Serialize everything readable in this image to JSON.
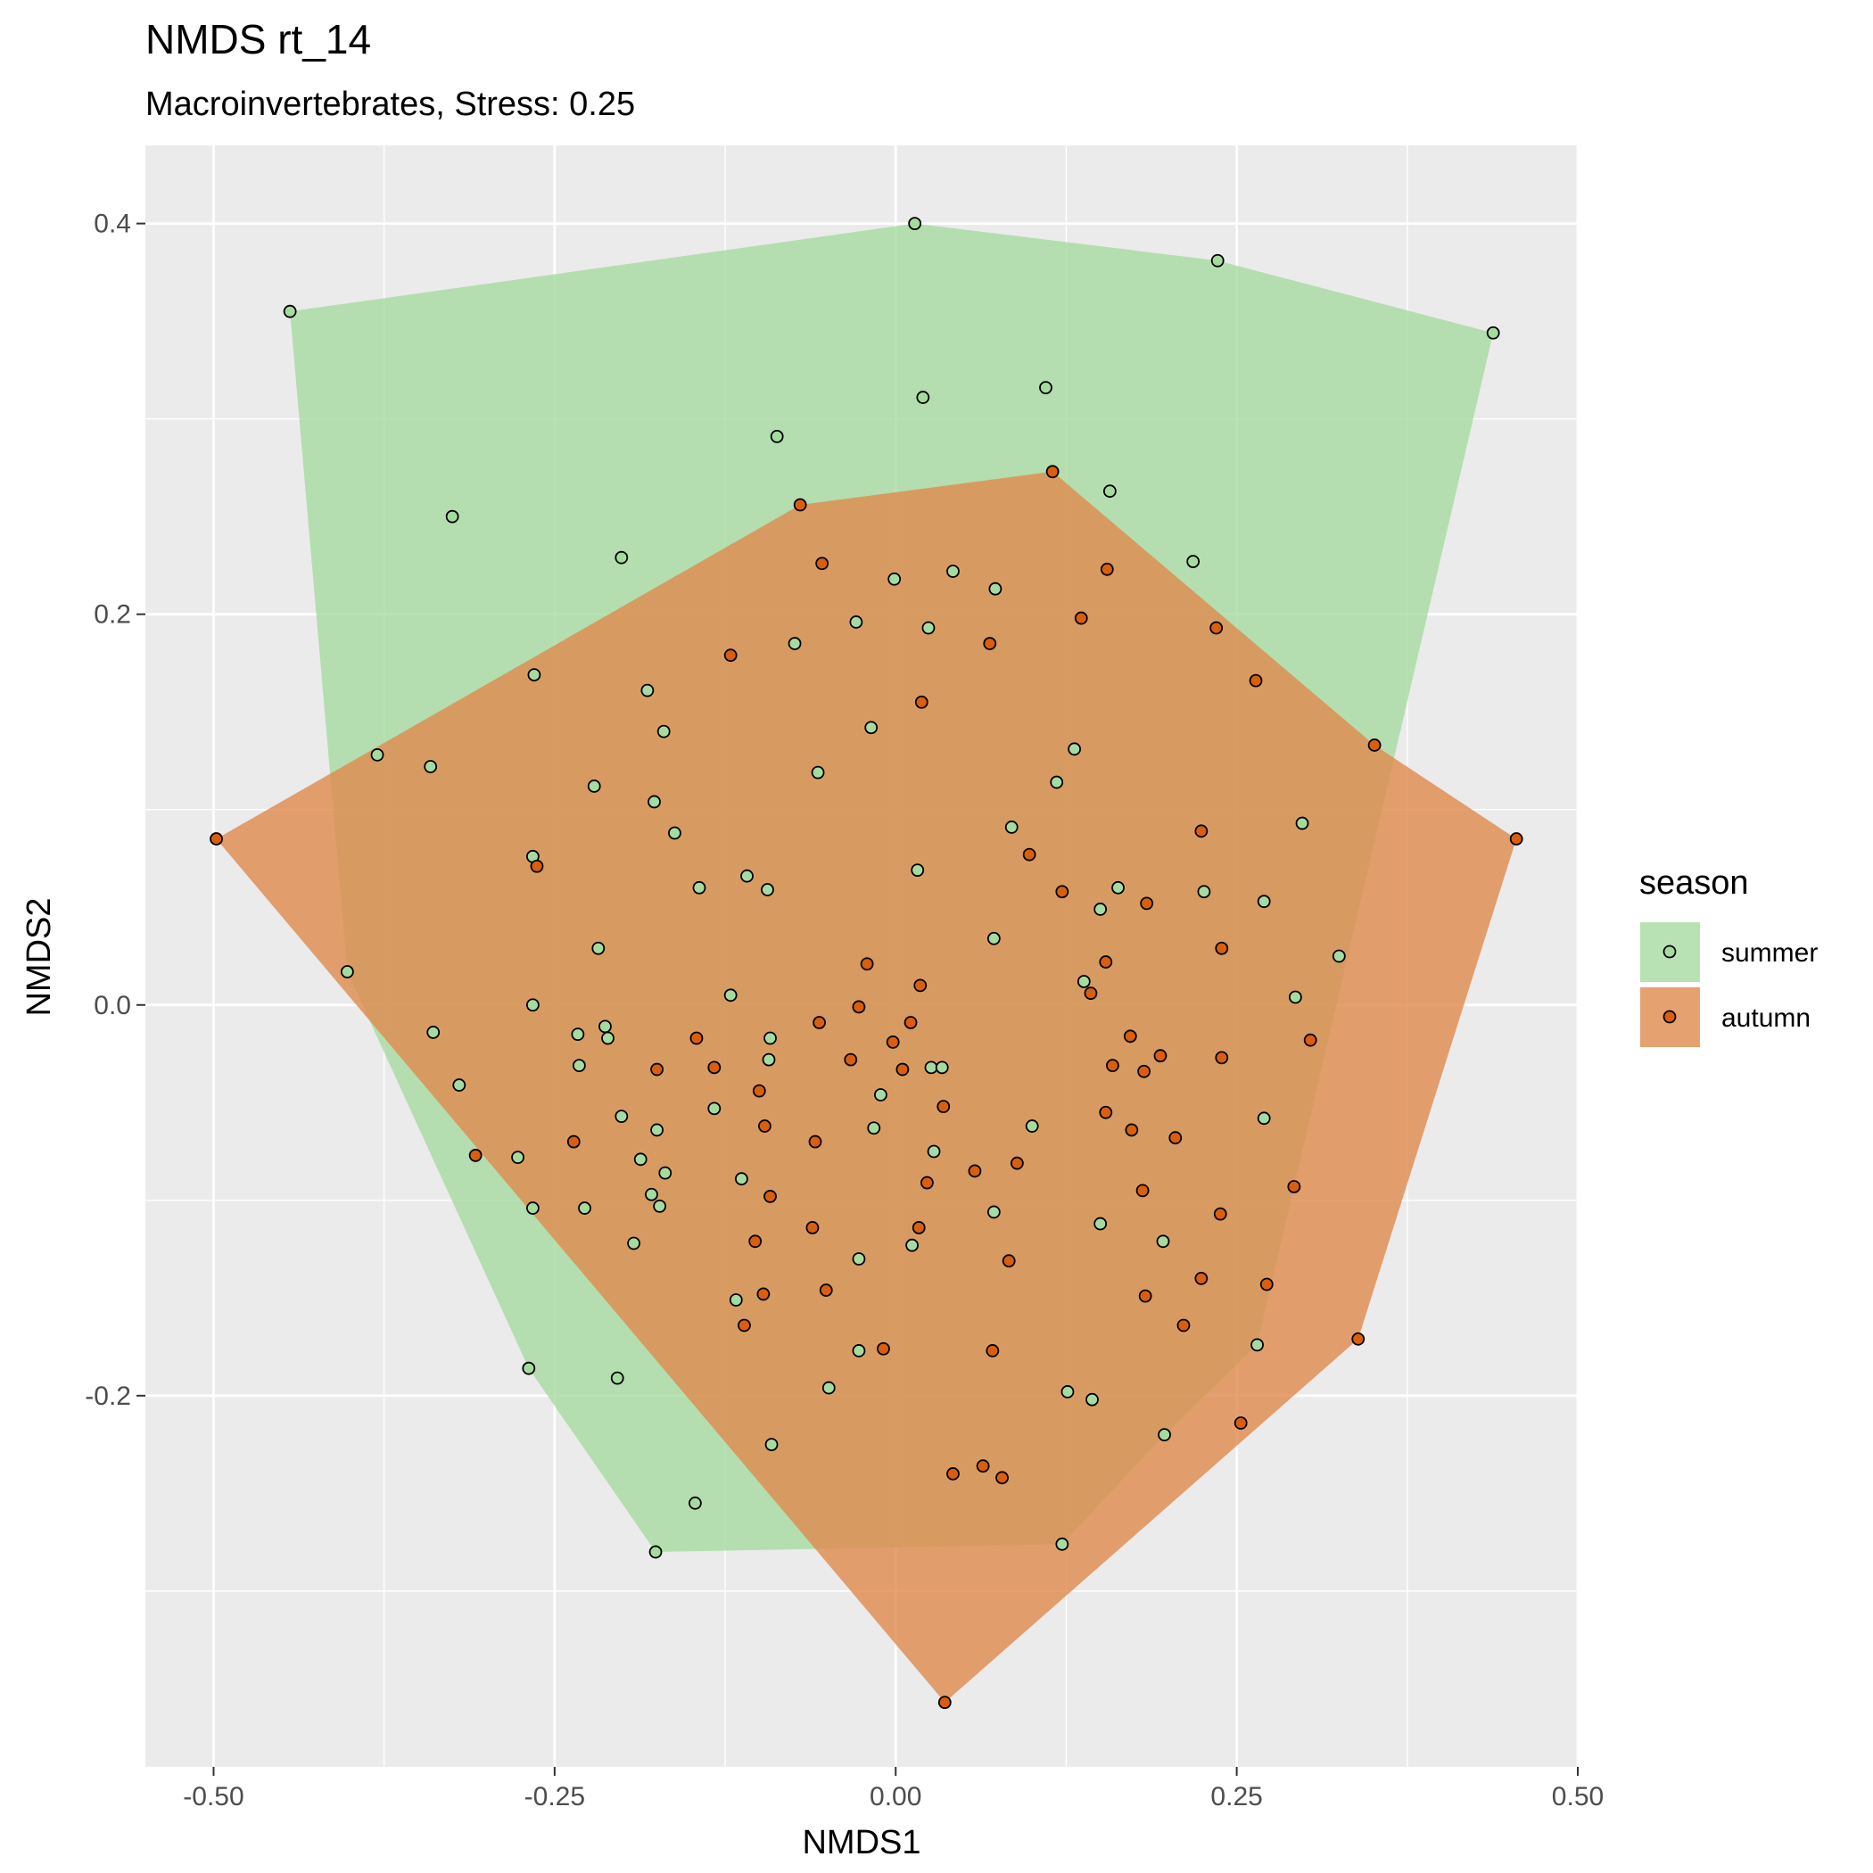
{
  "chart_data": {
    "type": "scatter",
    "title": "NMDS rt_14",
    "subtitle": "Macroinvertebrates, Stress: 0.25",
    "xlabel": "NMDS1",
    "ylabel": "NMDS2",
    "xlim": [
      -0.55,
      0.5
    ],
    "ylim": [
      -0.39,
      0.44
    ],
    "x_ticks": [
      -0.5,
      -0.25,
      0.0,
      0.25,
      0.5
    ],
    "x_tick_labels": [
      "-0.50",
      "-0.25",
      "0.00",
      "0.25",
      "0.50"
    ],
    "y_ticks": [
      -0.2,
      0.0,
      0.2,
      0.4
    ],
    "y_tick_labels": [
      "-0.2",
      "0.0",
      "0.2",
      "0.4"
    ],
    "grid": true,
    "panel_background": "#ebebeb",
    "legend": {
      "title": "season",
      "position": "right"
    },
    "hulls": true,
    "series": [
      {
        "name": "summer",
        "color": "#a6dba0",
        "hull_color": "#a6dba0",
        "points": [
          [
            0.014,
            0.4
          ],
          [
            0.236,
            0.381
          ],
          [
            -0.444,
            0.355
          ],
          [
            0.438,
            0.344
          ],
          [
            0.02,
            0.311
          ],
          [
            0.11,
            0.316
          ],
          [
            -0.087,
            0.291
          ],
          [
            -0.325,
            0.25
          ],
          [
            0.157,
            0.263
          ],
          [
            -0.201,
            0.229
          ],
          [
            0.218,
            0.227
          ],
          [
            0.042,
            0.222
          ],
          [
            -0.001,
            0.218
          ],
          [
            0.073,
            0.213
          ],
          [
            -0.029,
            0.196
          ],
          [
            0.024,
            0.193
          ],
          [
            -0.074,
            0.185
          ],
          [
            -0.265,
            0.169
          ],
          [
            -0.182,
            0.161
          ],
          [
            -0.17,
            0.14
          ],
          [
            -0.018,
            0.142
          ],
          [
            0.131,
            0.131
          ],
          [
            -0.38,
            0.128
          ],
          [
            -0.341,
            0.122
          ],
          [
            -0.057,
            0.119
          ],
          [
            0.118,
            0.114
          ],
          [
            -0.221,
            0.112
          ],
          [
            -0.177,
            0.104
          ],
          [
            0.085,
            0.091
          ],
          [
            0.298,
            0.093
          ],
          [
            -0.162,
            0.088
          ],
          [
            -0.266,
            0.076
          ],
          [
            0.016,
            0.069
          ],
          [
            -0.109,
            0.066
          ],
          [
            -0.144,
            0.06
          ],
          [
            -0.094,
            0.059
          ],
          [
            0.163,
            0.06
          ],
          [
            0.226,
            0.058
          ],
          [
            0.15,
            0.049
          ],
          [
            0.27,
            0.053
          ],
          [
            0.072,
            0.034
          ],
          [
            -0.218,
            0.029
          ],
          [
            0.325,
            0.025
          ],
          [
            -0.402,
            0.017
          ],
          [
            0.138,
            0.012
          ],
          [
            -0.121,
            0.005
          ],
          [
            0.293,
            0.004
          ],
          [
            -0.266,
            0.0
          ],
          [
            -0.213,
            -0.011
          ],
          [
            -0.233,
            -0.015
          ],
          [
            -0.211,
            -0.017
          ],
          [
            -0.339,
            -0.014
          ],
          [
            -0.092,
            -0.017
          ],
          [
            -0.093,
            -0.028
          ],
          [
            -0.232,
            -0.031
          ],
          [
            -0.32,
            -0.041
          ],
          [
            0.026,
            -0.032
          ],
          [
            0.034,
            -0.032
          ],
          [
            -0.011,
            -0.046
          ],
          [
            -0.133,
            -0.053
          ],
          [
            -0.201,
            -0.057
          ],
          [
            -0.175,
            -0.064
          ],
          [
            -0.016,
            -0.063
          ],
          [
            0.1,
            -0.062
          ],
          [
            0.27,
            -0.058
          ],
          [
            -0.277,
            -0.078
          ],
          [
            -0.187,
            -0.079
          ],
          [
            0.028,
            -0.075
          ],
          [
            -0.169,
            -0.086
          ],
          [
            -0.113,
            -0.089
          ],
          [
            -0.179,
            -0.097
          ],
          [
            -0.173,
            -0.103
          ],
          [
            -0.266,
            -0.104
          ],
          [
            -0.228,
            -0.104
          ],
          [
            0.072,
            -0.106
          ],
          [
            0.15,
            -0.112
          ],
          [
            -0.192,
            -0.122
          ],
          [
            0.012,
            -0.123
          ],
          [
            0.196,
            -0.121
          ],
          [
            -0.027,
            -0.13
          ],
          [
            -0.117,
            -0.151
          ],
          [
            -0.027,
            -0.177
          ],
          [
            0.265,
            -0.174
          ],
          [
            -0.269,
            -0.186
          ],
          [
            -0.204,
            -0.191
          ],
          [
            -0.049,
            -0.196
          ],
          [
            0.126,
            -0.198
          ],
          [
            0.144,
            -0.202
          ],
          [
            0.197,
            -0.22
          ],
          [
            -0.091,
            -0.225
          ],
          [
            -0.147,
            -0.255
          ],
          [
            -0.176,
            -0.28
          ],
          [
            0.122,
            -0.276
          ]
        ],
        "hull": [
          [
            0.014,
            0.4
          ],
          [
            0.236,
            0.381
          ],
          [
            0.438,
            0.344
          ],
          [
            0.265,
            -0.174
          ],
          [
            0.197,
            -0.22
          ],
          [
            0.122,
            -0.276
          ],
          [
            -0.176,
            -0.28
          ],
          [
            -0.269,
            -0.186
          ],
          [
            -0.402,
            0.017
          ],
          [
            -0.444,
            0.355
          ]
        ]
      },
      {
        "name": "autumn",
        "color": "#d95f0e",
        "hull_color": "#e08a4d",
        "points": [
          [
            0.115,
            0.273
          ],
          [
            -0.07,
            0.256
          ],
          [
            -0.054,
            0.226
          ],
          [
            0.155,
            0.223
          ],
          [
            0.136,
            0.198
          ],
          [
            0.235,
            0.193
          ],
          [
            0.069,
            0.185
          ],
          [
            -0.121,
            0.179
          ],
          [
            0.264,
            0.166
          ],
          [
            0.019,
            0.155
          ],
          [
            0.351,
            0.133
          ],
          [
            -0.498,
            0.085
          ],
          [
            0.455,
            0.085
          ],
          [
            0.224,
            0.089
          ],
          [
            0.098,
            0.077
          ],
          [
            -0.263,
            0.071
          ],
          [
            0.122,
            0.058
          ],
          [
            0.184,
            0.052
          ],
          [
            0.239,
            0.029
          ],
          [
            -0.021,
            0.021
          ],
          [
            0.154,
            0.022
          ],
          [
            0.018,
            0.01
          ],
          [
            0.143,
            0.006
          ],
          [
            -0.027,
            -0.001
          ],
          [
            0.011,
            -0.009
          ],
          [
            -0.056,
            -0.009
          ],
          [
            0.172,
            -0.016
          ],
          [
            0.194,
            -0.026
          ],
          [
            -0.146,
            -0.017
          ],
          [
            -0.002,
            -0.019
          ],
          [
            0.304,
            -0.018
          ],
          [
            -0.033,
            -0.028
          ],
          [
            -0.133,
            -0.032
          ],
          [
            0.159,
            -0.031
          ],
          [
            0.182,
            -0.034
          ],
          [
            0.239,
            -0.027
          ],
          [
            0.005,
            -0.033
          ],
          [
            -0.175,
            -0.033
          ],
          [
            -0.1,
            -0.044
          ],
          [
            0.035,
            -0.052
          ],
          [
            -0.096,
            -0.062
          ],
          [
            0.154,
            -0.055
          ],
          [
            0.173,
            -0.064
          ],
          [
            -0.059,
            -0.07
          ],
          [
            0.205,
            -0.068
          ],
          [
            -0.236,
            -0.07
          ],
          [
            -0.308,
            -0.077
          ],
          [
            0.089,
            -0.081
          ],
          [
            0.058,
            -0.085
          ],
          [
            0.023,
            -0.091
          ],
          [
            0.292,
            -0.093
          ],
          [
            0.181,
            -0.095
          ],
          [
            -0.092,
            -0.098
          ],
          [
            0.238,
            -0.107
          ],
          [
            -0.061,
            -0.114
          ],
          [
            0.017,
            -0.114
          ],
          [
            -0.103,
            -0.121
          ],
          [
            0.083,
            -0.131
          ],
          [
            0.224,
            -0.14
          ],
          [
            0.272,
            -0.143
          ],
          [
            -0.051,
            -0.146
          ],
          [
            -0.097,
            -0.148
          ],
          [
            0.183,
            -0.149
          ],
          [
            0.211,
            -0.164
          ],
          [
            -0.111,
            -0.164
          ],
          [
            -0.009,
            -0.176
          ],
          [
            0.071,
            -0.177
          ],
          [
            0.339,
            -0.171
          ],
          [
            0.253,
            -0.214
          ],
          [
            0.042,
            -0.24
          ],
          [
            0.064,
            -0.236
          ],
          [
            0.078,
            -0.242
          ],
          [
            0.036,
            -0.357
          ]
        ],
        "hull": [
          [
            0.115,
            0.273
          ],
          [
            0.351,
            0.133
          ],
          [
            0.455,
            0.085
          ],
          [
            0.339,
            -0.171
          ],
          [
            0.036,
            -0.357
          ],
          [
            -0.498,
            0.085
          ],
          [
            -0.07,
            0.256
          ]
        ]
      }
    ]
  }
}
